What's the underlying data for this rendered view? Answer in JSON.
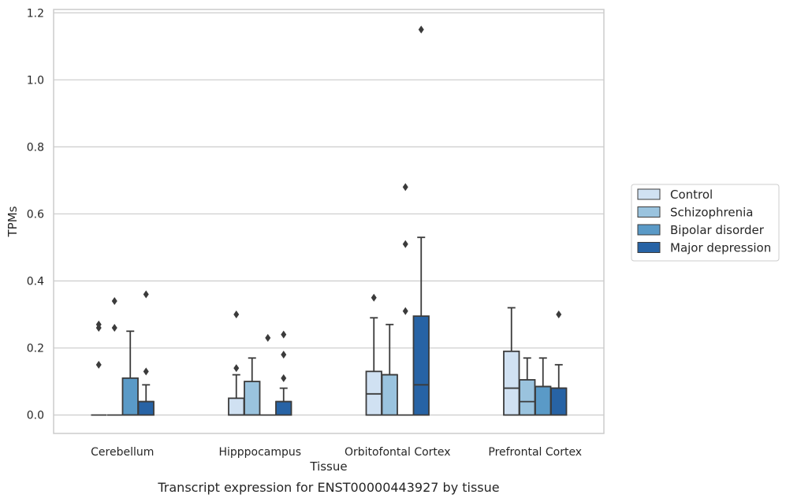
{
  "chart_data": {
    "type": "box",
    "title": "",
    "caption": "Transcript expression for ENST00000443927 by tissue",
    "xlabel": "Tissue",
    "ylabel": "TPMs",
    "ylim": [
      -0.055,
      1.21
    ],
    "yticks": [
      "0.0",
      "0.2",
      "0.4",
      "0.6",
      "0.8",
      "1.0",
      "1.2"
    ],
    "ytick_values": [
      0,
      0.2,
      0.4,
      0.6,
      0.8,
      1.0,
      1.2
    ],
    "grid": "horizontal",
    "legend_position": "right",
    "categories": [
      "Cerebellum",
      "Hipppocampus",
      "Orbitofontal Cortex",
      "Prefrontal Cortex"
    ],
    "series": [
      {
        "name": "Control",
        "color": "#d0e1f2",
        "boxes": [
          {
            "q1": 0,
            "median": 0,
            "q3": 0,
            "whisker_low": 0,
            "whisker_high": 0,
            "outliers": [
              0.15,
              0.26,
              0.27
            ]
          },
          {
            "q1": 0,
            "median": 0,
            "q3": 0.05,
            "whisker_low": 0,
            "whisker_high": 0.12,
            "outliers": [
              0.14,
              0.3
            ]
          },
          {
            "q1": 0,
            "median": 0.063,
            "q3": 0.13,
            "whisker_low": 0,
            "whisker_high": 0.29,
            "outliers": [
              0.35
            ]
          },
          {
            "q1": 0,
            "median": 0.08,
            "q3": 0.19,
            "whisker_low": 0,
            "whisker_high": 0.32,
            "outliers": []
          }
        ]
      },
      {
        "name": "Schizophrenia",
        "color": "#9ac3de",
        "boxes": [
          {
            "q1": 0,
            "median": 0,
            "q3": 0,
            "whisker_low": 0,
            "whisker_high": 0,
            "outliers": [
              0.26,
              0.34
            ]
          },
          {
            "q1": 0,
            "median": 0,
            "q3": 0.1,
            "whisker_low": 0,
            "whisker_high": 0.17,
            "outliers": []
          },
          {
            "q1": 0,
            "median": 0.12,
            "q3": 0.12,
            "whisker_low": 0,
            "whisker_high": 0.27,
            "outliers": []
          },
          {
            "q1": 0,
            "median": 0.04,
            "q3": 0.105,
            "whisker_low": 0,
            "whisker_high": 0.17,
            "outliers": []
          }
        ]
      },
      {
        "name": "Bipolar disorder",
        "color": "#5a9ac7",
        "boxes": [
          {
            "q1": 0,
            "median": 0,
            "q3": 0.11,
            "whisker_low": 0,
            "whisker_high": 0.25,
            "outliers": []
          },
          {
            "q1": 0,
            "median": 0,
            "q3": 0,
            "whisker_low": 0,
            "whisker_high": 0,
            "outliers": [
              0.23
            ]
          },
          {
            "q1": 0,
            "median": 0,
            "q3": 0,
            "whisker_low": 0,
            "whisker_high": 0,
            "outliers": [
              0.31,
              0.51,
              0.68
            ]
          },
          {
            "q1": 0,
            "median": 0.085,
            "q3": 0.085,
            "whisker_low": 0,
            "whisker_high": 0.17,
            "outliers": []
          }
        ]
      },
      {
        "name": "Major depression",
        "color": "#2763a5",
        "boxes": [
          {
            "q1": 0,
            "median": 0.04,
            "q3": 0.04,
            "whisker_low": 0,
            "whisker_high": 0.09,
            "outliers": [
              0.13,
              0.36
            ]
          },
          {
            "q1": 0,
            "median": 0.04,
            "q3": 0.04,
            "whisker_low": 0,
            "whisker_high": 0.08,
            "outliers": [
              0.11,
              0.18,
              0.24
            ]
          },
          {
            "q1": 0,
            "median": 0.09,
            "q3": 0.295,
            "whisker_low": 0,
            "whisker_high": 0.53,
            "outliers": [
              1.15
            ]
          },
          {
            "q1": 0,
            "median": 0.08,
            "q3": 0.08,
            "whisker_low": 0,
            "whisker_high": 0.15,
            "outliers": [
              0.3
            ]
          }
        ]
      }
    ]
  }
}
